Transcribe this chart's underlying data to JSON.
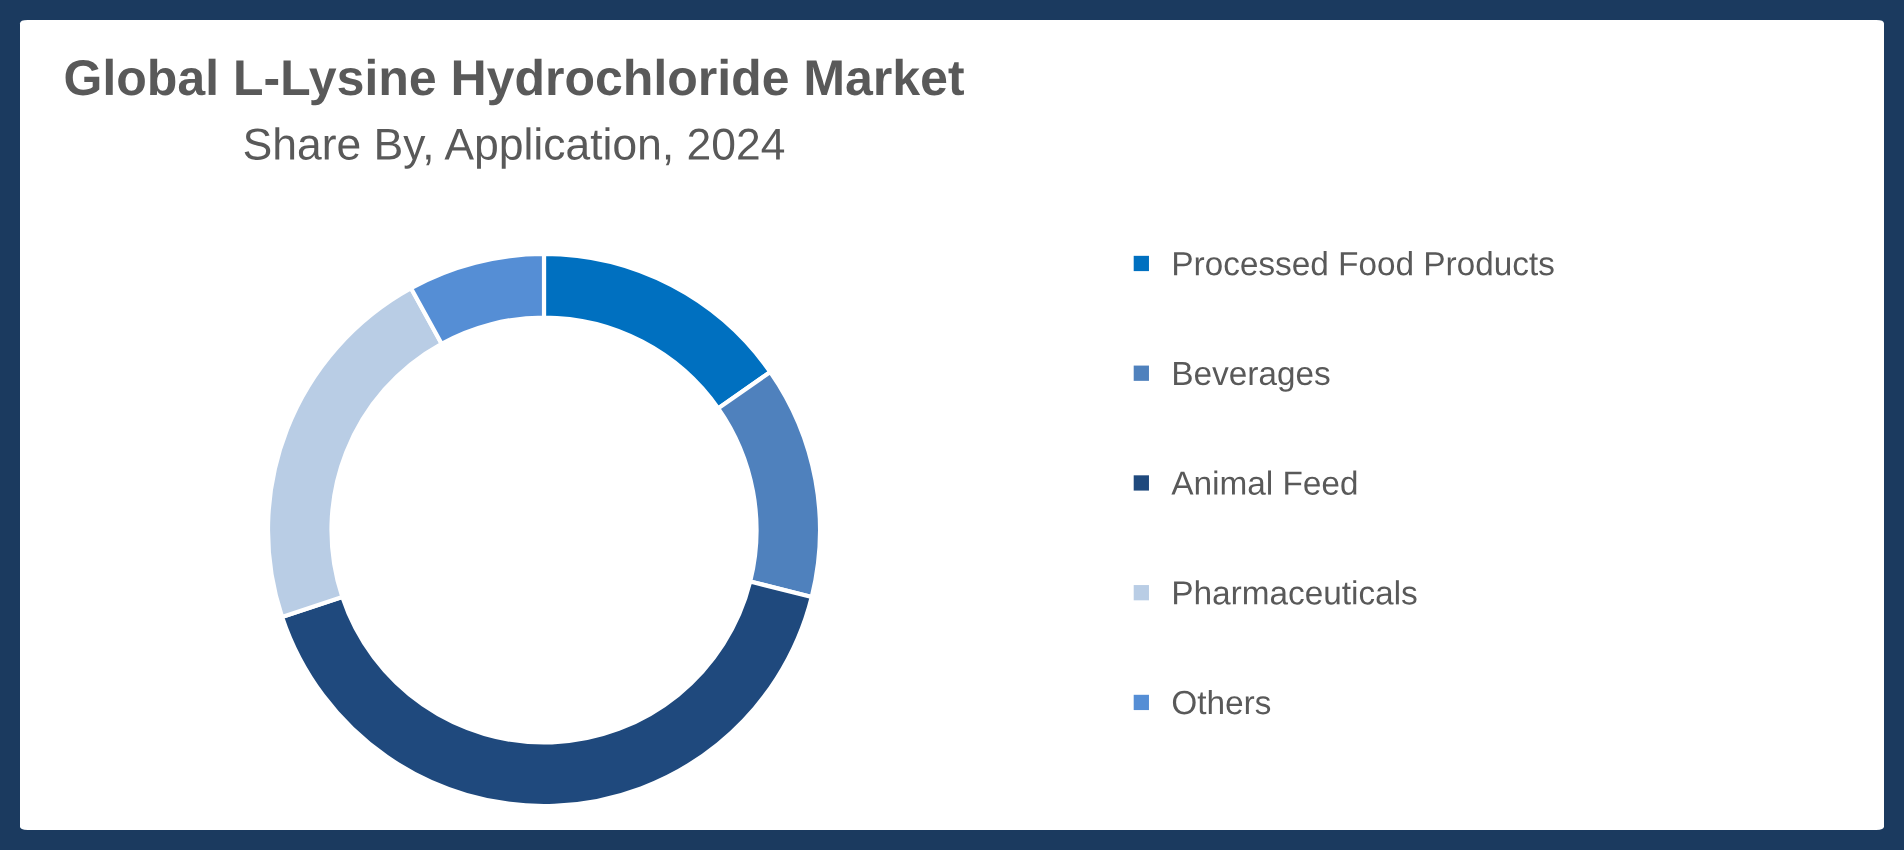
{
  "chart_data": {
    "type": "donut",
    "title": "Global L-Lysine Hydrochloride Market",
    "subtitle": "Share By, Application, 2024",
    "categories": [
      "Processed Food Products",
      "Beverages",
      "Animal Feed",
      "Pharmaceuticals",
      "Others"
    ],
    "values": [
      15.3,
      13.6,
      41.0,
      22.1,
      8.0
    ],
    "colors": [
      "#0070c0",
      "#4f81bd",
      "#1f497d",
      "#b9cde5",
      "#558ed5"
    ],
    "legend": "right"
  }
}
